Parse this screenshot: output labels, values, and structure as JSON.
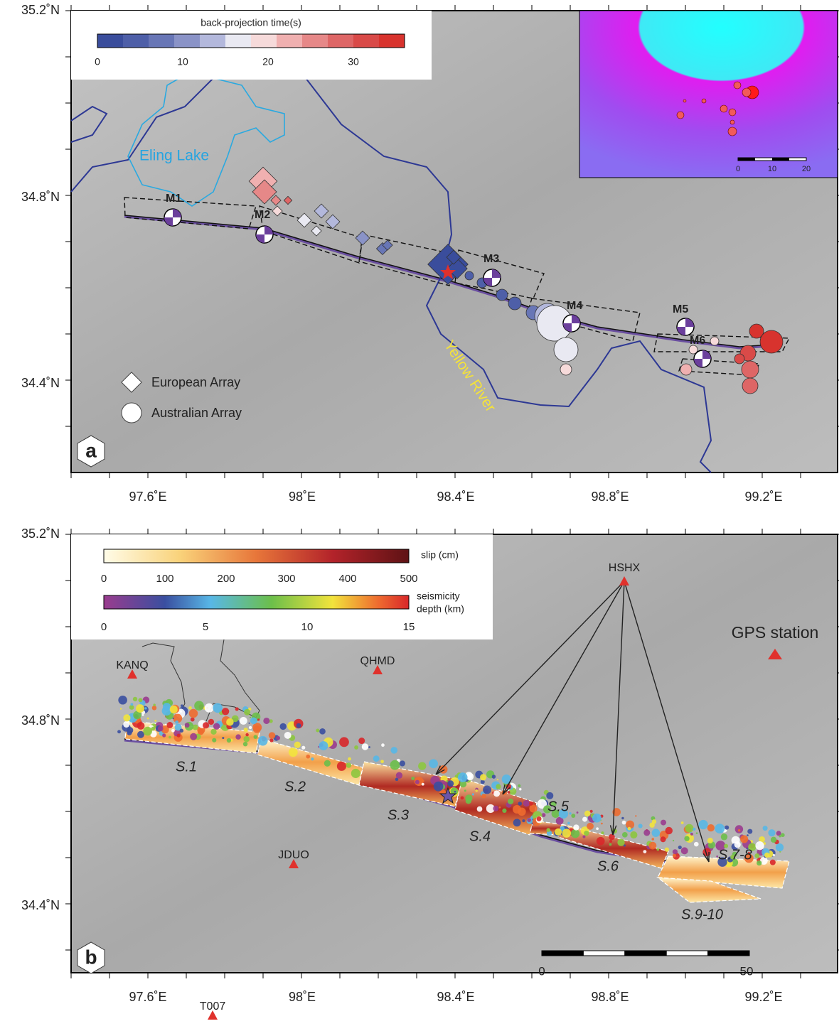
{
  "axes": {
    "lat_ticks": [
      "35.2˚N",
      "34.8˚N",
      "34.4˚N"
    ],
    "lon_ticks": [
      "97.6˚E",
      "98˚E",
      "98.4˚E",
      "98.8˚E",
      "99.2˚E"
    ]
  },
  "panel_a": {
    "label": "a",
    "colorbar": {
      "title": "back-projection time(s)",
      "ticks": [
        "0",
        "10",
        "20",
        "30"
      ]
    },
    "lake": "Eling Lake",
    "river": "Yellow River",
    "legend": [
      "European Array",
      "Australian Array"
    ],
    "mechanisms": [
      "M1",
      "M2",
      "M3",
      "M4",
      "M5",
      "M6"
    ],
    "inset_scale": [
      "0",
      "10",
      "20"
    ]
  },
  "panel_b": {
    "label": "b",
    "slip_colorbar": {
      "title": "slip (cm)",
      "ticks": [
        "0",
        "100",
        "200",
        "300",
        "400",
        "500"
      ]
    },
    "depth_colorbar": {
      "title": [
        "seismicity",
        "depth (km)"
      ],
      "ticks": [
        "0",
        "5",
        "10",
        "15"
      ]
    },
    "stations": [
      "HSHX",
      "KANQ",
      "QHMD",
      "JDUO",
      "T007"
    ],
    "gps_legend": "GPS station",
    "segments": [
      "S.1",
      "S.2",
      "S.3",
      "S.4",
      "S.5",
      "S.6",
      "S.7-8",
      "S.9-10"
    ],
    "scale": [
      "0",
      "50"
    ]
  }
}
